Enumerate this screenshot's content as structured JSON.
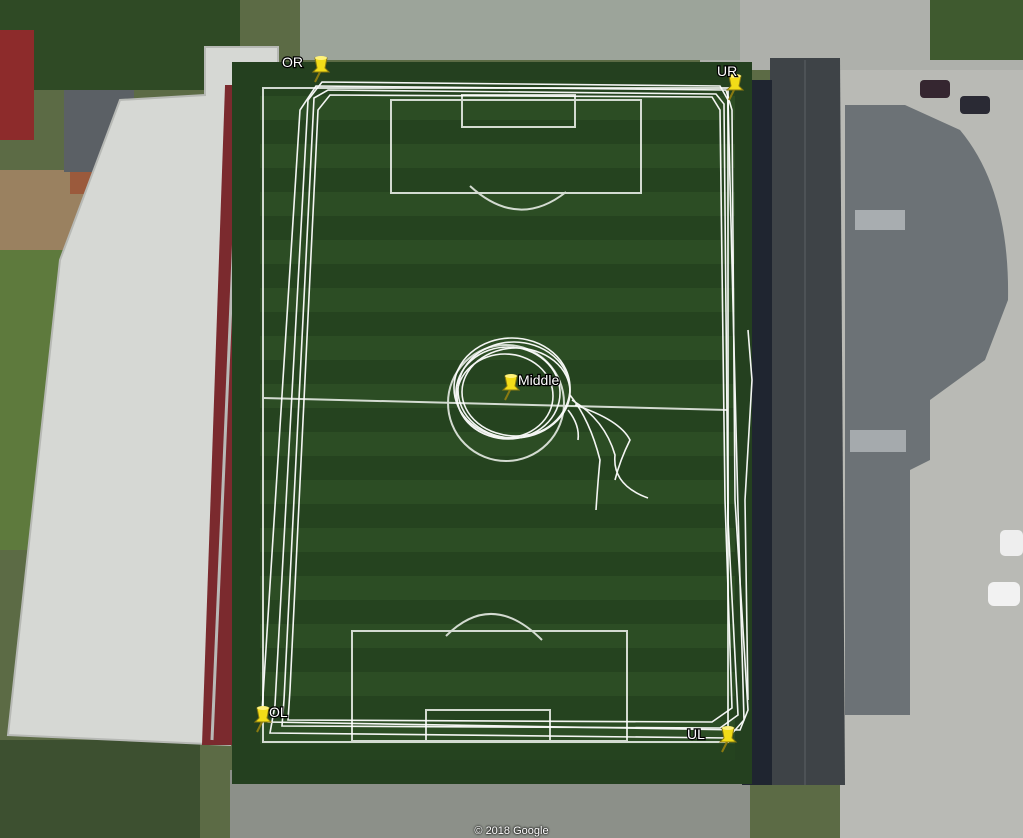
{
  "map": {
    "markers": [
      {
        "id": "OR",
        "label": "OR"
      },
      {
        "id": "UR",
        "label": "UR"
      },
      {
        "id": "Middle",
        "label": "Middle"
      },
      {
        "id": "OL",
        "label": "OL"
      },
      {
        "id": "UL",
        "label": "UL"
      }
    ],
    "copyright": "© 2018 Google",
    "colors": {
      "pitch": "#2a4a22",
      "pin": "#f2dc18",
      "track": "#ffffff",
      "roof_light": "#d7d9d6",
      "roof_dark": "#3f4447"
    }
  }
}
